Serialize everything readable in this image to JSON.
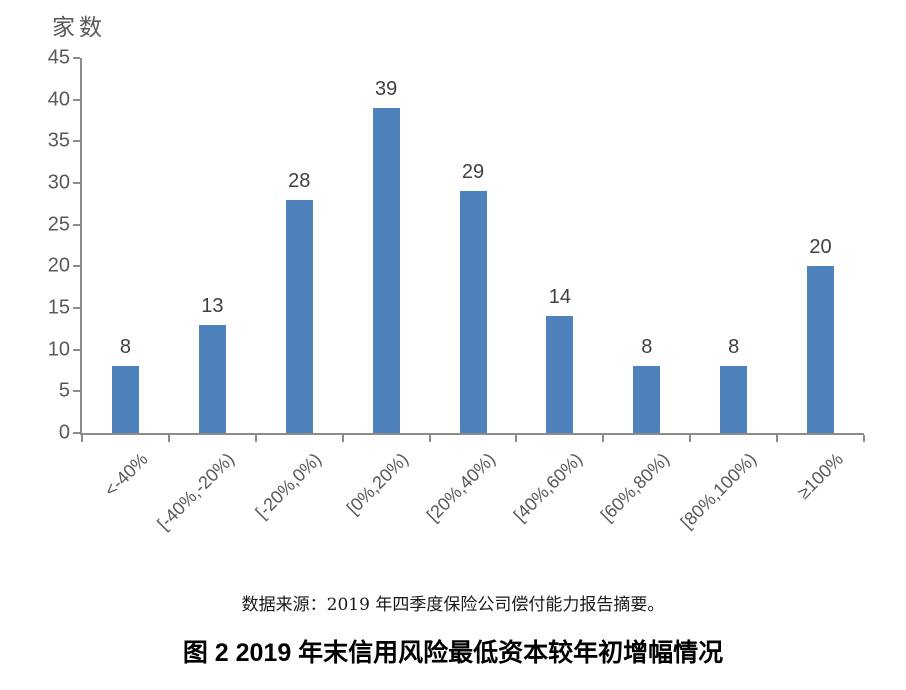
{
  "chart_data": {
    "type": "bar",
    "title": "图 2  2019 年末信用风险最低资本较年初增幅情况",
    "source_note": "数据来源：2019 年四季度保险公司偿付能力报告摘要。",
    "ylabel": "家数",
    "xlabel": "",
    "categories": [
      "<-40%",
      "[-40%,-20%)",
      "[-20%,0%)",
      "[0%,20%)",
      "[20%,40%)",
      "[40%,60%)",
      "[60%,80%)",
      "[80%,100%)",
      "≥100%"
    ],
    "values": [
      8,
      13,
      28,
      39,
      29,
      14,
      8,
      8,
      20
    ],
    "ylim": [
      0,
      45
    ],
    "ytick_step": 5,
    "grid": "off",
    "legend": "none",
    "bar_color": "#4F81BD",
    "axis_color": "#8c8c8c",
    "tick_label_color": "#595959",
    "data_label_color": "#404040"
  }
}
